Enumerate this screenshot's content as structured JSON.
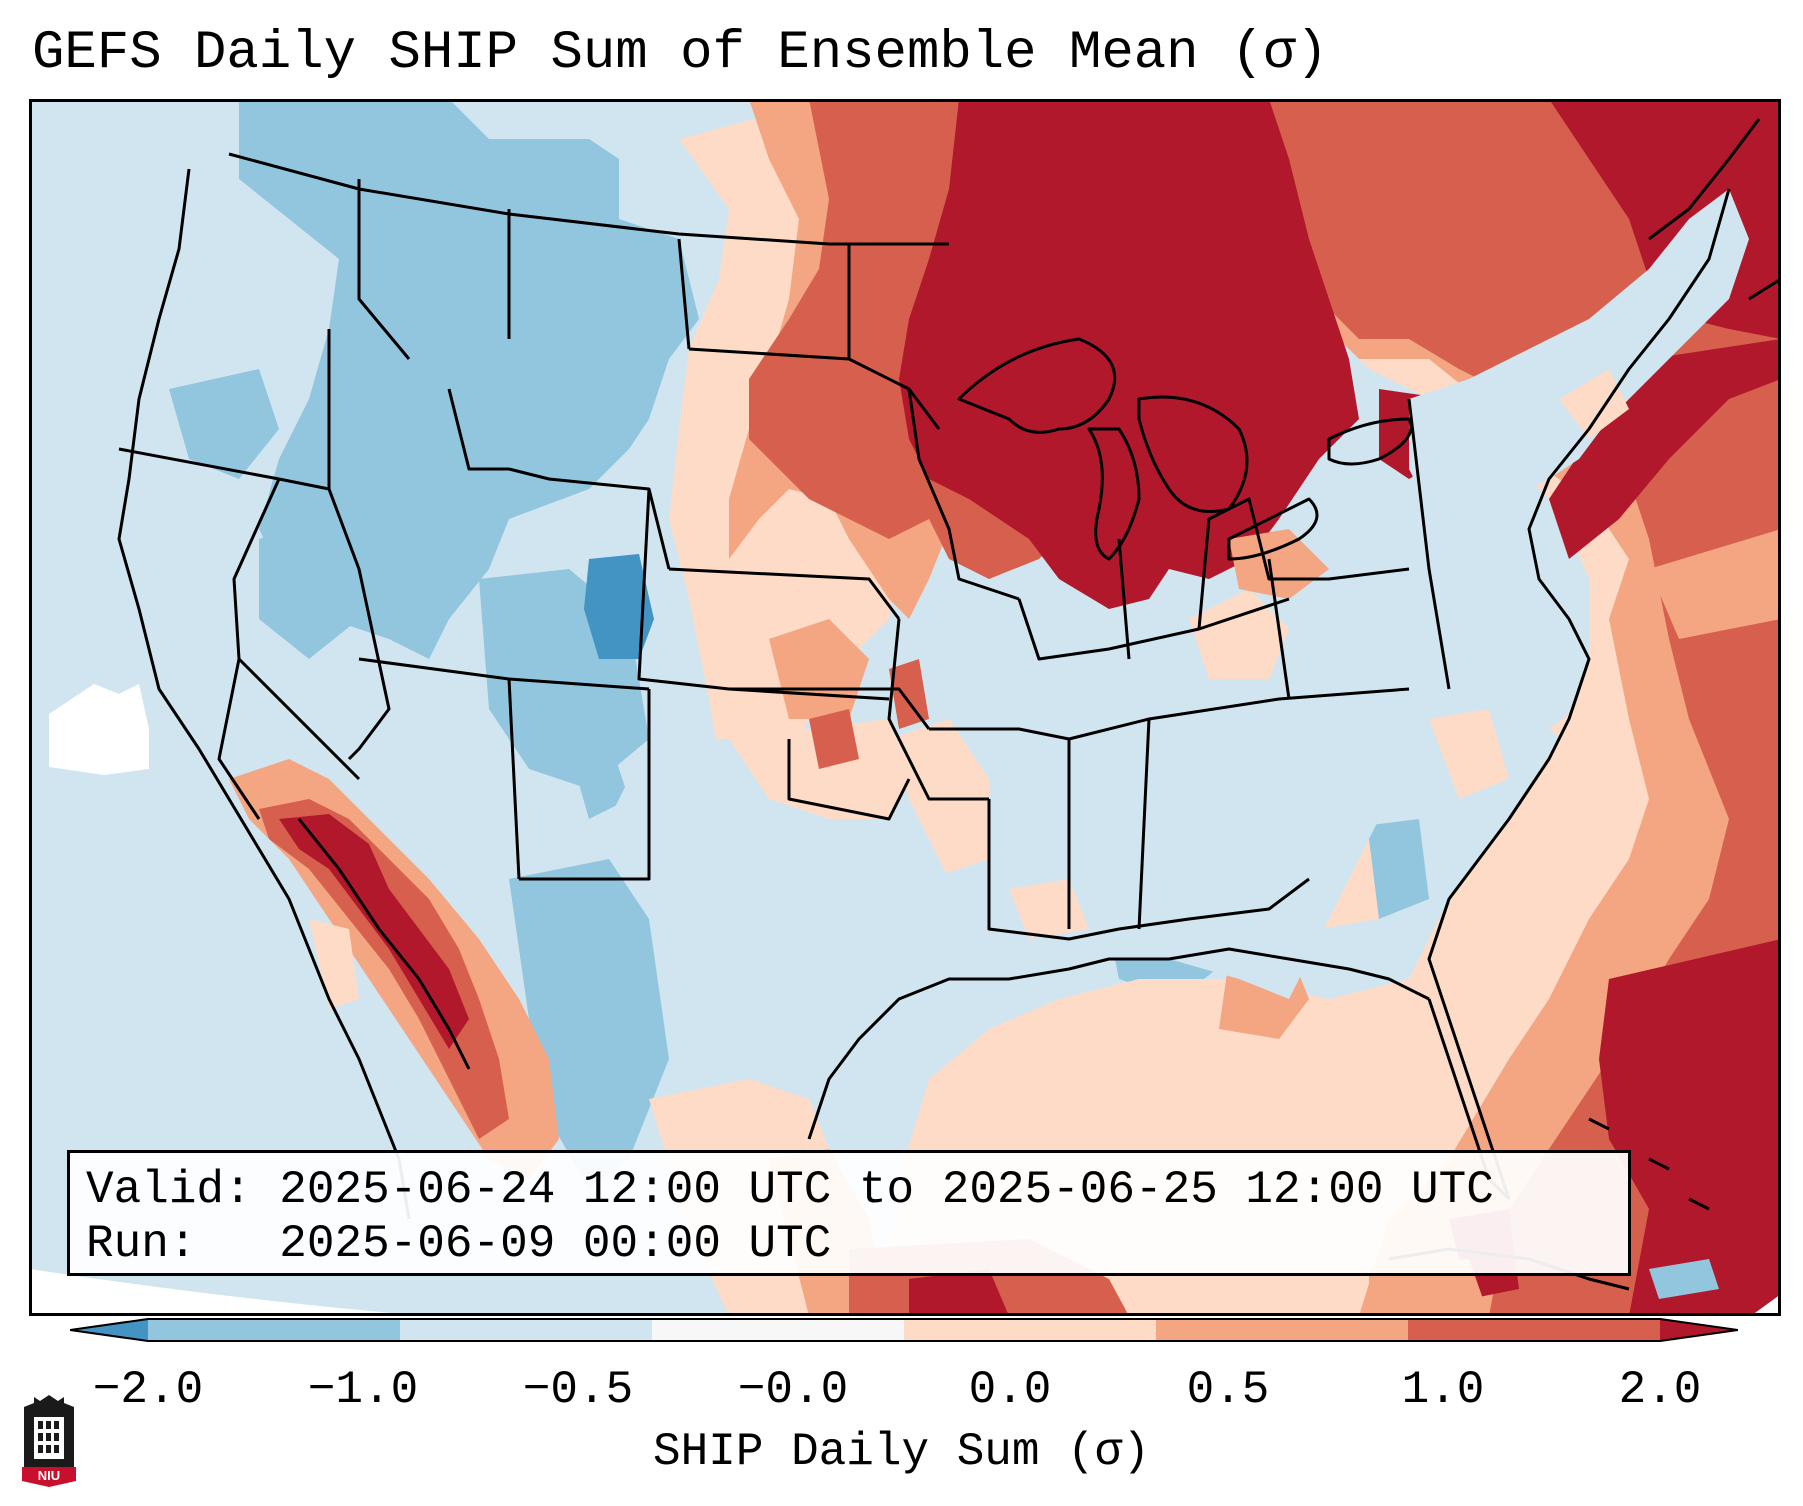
{
  "title": "GEFS Daily SHIP Sum of Ensemble Mean (σ)",
  "info": {
    "valid_label": "Valid:",
    "valid_value": "2025-06-24 12:00 UTC to 2025-06-25 12:00 UTC",
    "run_label": "Run:",
    "run_value": "2025-06-09 00:00 UTC"
  },
  "colorbar": {
    "label": "SHIP Daily Sum (σ)",
    "ticks": [
      "−2.0",
      "−1.0",
      "−0.5",
      "−0.0",
      "0.0",
      "0.5",
      "1.0",
      "2.0"
    ],
    "colors": [
      "#4393c3",
      "#92c5de",
      "#d1e5f0",
      "#f7f7f7",
      "#fddbc7",
      "#f4a582",
      "#d6604d",
      "#b2182b"
    ]
  },
  "logo": {
    "icon": "niu-university-logo",
    "text": "NIU",
    "colors": {
      "tower": "#1a1a1a",
      "banner": "#c8102e"
    }
  },
  "map": {
    "projection": "lambert-conformal-conus",
    "background_color": "#d1e5f0",
    "dominant_regions": [
      {
        "region": "Upper Midwest / Great Lakes / Ontario",
        "category": "1.0 to 2.0",
        "color": "#b2182b"
      },
      {
        "region": "Northern & Central Plains",
        "category": "0.5 to 1.0",
        "color": "#d6604d"
      },
      {
        "region": "Northern Rockies / Great Basin",
        "category": "−1.0 to −0.5",
        "color": "#92c5de"
      },
      {
        "region": "Central Colorado",
        "category": "−2.0 to −1.0",
        "color": "#4393c3"
      },
      {
        "region": "Southeast US",
        "category": "−0.5 to −0.0",
        "color": "#d1e5f0"
      },
      {
        "region": "Desert Southwest / Gulf of California",
        "category": "1.0 to 2.0",
        "color": "#b2182b"
      },
      {
        "region": "Western Atlantic / Caribbean",
        "category": "1.0 to 2.0",
        "color": "#b2182b"
      },
      {
        "region": "Northeast coast",
        "category": "1.0 to 2.0",
        "color": "#b2182b"
      },
      {
        "region": "Gulf of Mexico",
        "category": "0.0 to 1.0",
        "color": "#f4a582"
      }
    ]
  }
}
